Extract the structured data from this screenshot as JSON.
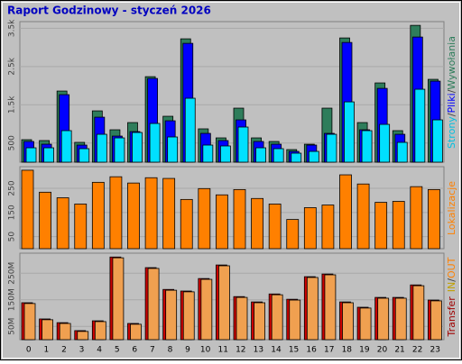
{
  "chart_data": [
    {
      "type": "bar",
      "title": "Raport Godzinowy -   styczeń 2026",
      "ylim": [
        0,
        3650
      ],
      "yticks": [
        500,
        {
          "value": 1500,
          "label": "1.5k"
        },
        {
          "value": 2500,
          "label": "2.5k"
        },
        {
          "value": 3500,
          "label": "3.5k"
        }
      ],
      "grid": true,
      "legend_separator": "/",
      "series": [
        {
          "name": "Wywołania",
          "color": "#2e7d5b",
          "values": [
            588,
            565,
            1859,
            518,
            1341,
            847,
            1035,
            2235,
            1200,
            3224,
            871,
            635,
            1412,
            635,
            541,
            329,
            470,
            1412,
            3247,
            1035,
            2071,
            824,
            3576,
            2165
          ]
        },
        {
          "name": "Pliki",
          "color": "#0000ff",
          "values": [
            541,
            470,
            1765,
            447,
            1176,
            682,
            800,
            2188,
            1082,
            3106,
            753,
            565,
            1106,
            541,
            470,
            282,
            447,
            753,
            3129,
            847,
            1929,
            729,
            3271,
            2118
          ]
        },
        {
          "name": "Strony",
          "color": "#00e0ff",
          "values": [
            376,
            376,
            824,
            353,
            729,
            635,
            776,
            1012,
            659,
            1671,
            447,
            424,
            918,
            376,
            353,
            235,
            282,
            729,
            1576,
            824,
            988,
            518,
            1906,
            1106
          ]
        }
      ]
    },
    {
      "type": "bar",
      "ylim": [
        0,
        336
      ],
      "yticks": [
        50,
        150,
        250
      ],
      "grid": true,
      "series": [
        {
          "name": "Lokalizacje",
          "color": "#ff8000",
          "values": [
            325,
            234,
            211,
            185,
            275,
            298,
            272,
            294,
            291,
            204,
            249,
            223,
            245,
            208,
            185,
            121,
            170,
            181,
            306,
            268,
            192,
            196,
            257,
            245
          ]
        }
      ]
    },
    {
      "type": "bar",
      "categories": [
        "0",
        "1",
        "2",
        "3",
        "4",
        "5",
        "6",
        "7",
        "8",
        "9",
        "10",
        "11",
        "12",
        "13",
        "14",
        "15",
        "16",
        "17",
        "18",
        "19",
        "20",
        "21",
        "22",
        "23"
      ],
      "ylim": [
        0,
        322
      ],
      "yticks": [
        {
          "value": 50,
          "label": "50M"
        },
        {
          "value": 150,
          "label": "150M"
        },
        {
          "value": 250,
          "label": "250M"
        }
      ],
      "grid": true,
      "label": "Transfer",
      "legend_separator": "/",
      "series": [
        {
          "name": "IN",
          "color": "#cc0000",
          "values": [
            139,
            78,
            64,
            34,
            71,
            311,
            61,
            271,
            189,
            183,
            230,
            281,
            162,
            142,
            172,
            152,
            237,
            247,
            142,
            122,
            159,
            159,
            206,
            149
          ]
        },
        {
          "name": "OUT",
          "color": "#f0a050",
          "values": [
            136,
            75,
            61,
            31,
            68,
            308,
            58,
            268,
            186,
            180,
            227,
            278,
            159,
            139,
            169,
            149,
            234,
            244,
            139,
            119,
            156,
            156,
            203,
            146
          ]
        }
      ]
    }
  ]
}
